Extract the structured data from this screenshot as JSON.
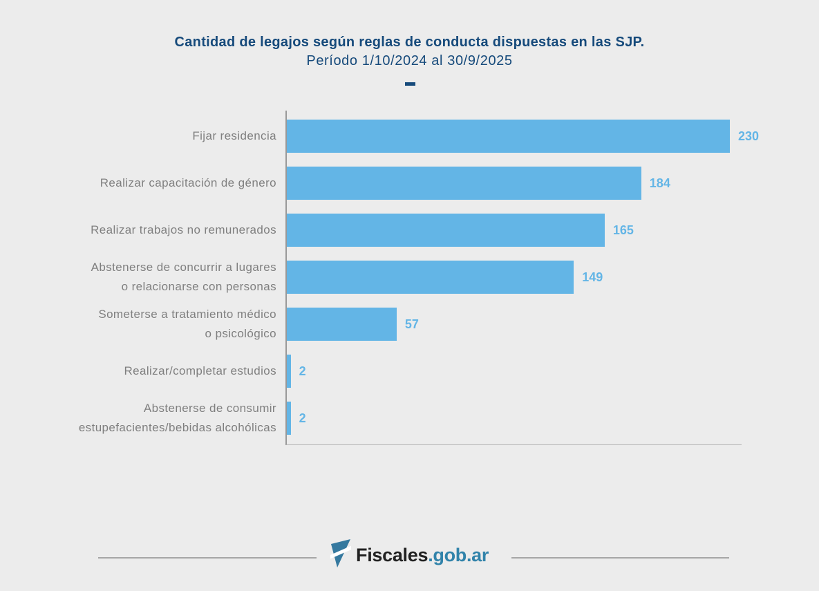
{
  "header": {
    "title": "Cantidad de legajos según reglas de conducta dispuestas en las SJP.",
    "subtitle": "Período 1/10/2024 al 30/9/2025",
    "divider_dash": "–"
  },
  "chart_data": {
    "type": "bar",
    "orientation": "horizontal",
    "title": "Cantidad de legajos según reglas de conducta dispuestas en las SJP.",
    "subtitle": "Período 1/10/2024 al 30/9/2025",
    "categories": [
      "Fijar residencia",
      "Realizar capacitación de género",
      "Realizar trabajos no remunerados",
      "Abstenerse de concurrir a lugares\no relacionarse con personas",
      "Someterse a tratamiento médico\no psicológico",
      "Realizar/completar estudios",
      "Abstenerse de consumir\nestupefacientes/bebidas alcohólicas"
    ],
    "values": [
      230,
      184,
      165,
      149,
      57,
      2,
      2
    ],
    "xlim": [
      0,
      236
    ],
    "grid": false,
    "legend": "none",
    "value_labels": "end-of-bar",
    "bar_color": "#63b5e6",
    "value_label_color": "#63b5e6",
    "category_label_color": "#7f7f7f",
    "axis_color": "#999999"
  },
  "colors": {
    "background": "#ececec",
    "title": "#164a7b",
    "bar": "#63b5e6",
    "category_label": "#7f7f7f",
    "axis": "#999999",
    "footer_brand_dark": "#212121",
    "footer_brand_blue": "#3183aa",
    "logo_blue": "#35799f"
  },
  "footer": {
    "brand": "Fiscales",
    "brand_suffix": ".gob.ar",
    "logo_icon": "fiscales-flag-icon"
  }
}
